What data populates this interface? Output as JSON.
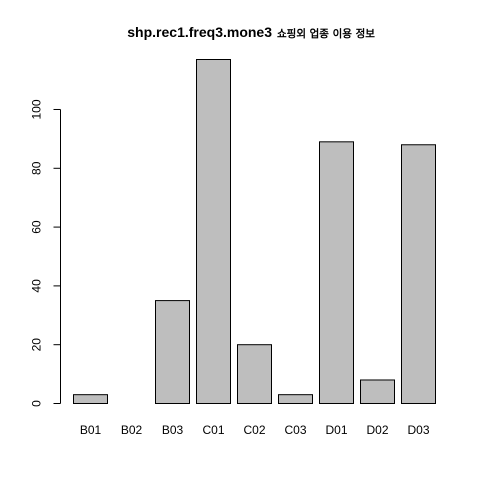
{
  "chart_data": {
    "type": "bar",
    "title": "shp.rec1.freq3.mone3",
    "subtitle": "쇼핑외 업종 이용 정보",
    "xlabel": "",
    "ylabel": "",
    "categories": [
      "B01",
      "B02",
      "B03",
      "C01",
      "C02",
      "C03",
      "D01",
      "D02",
      "D03"
    ],
    "values": [
      3,
      0,
      35,
      117,
      20,
      3,
      89,
      8,
      88
    ],
    "ylim": [
      0,
      117
    ],
    "yticks": [
      0,
      20,
      40,
      60,
      80,
      100
    ],
    "grid": false,
    "bar_color": "#bebebe",
    "border_color": "#000000"
  }
}
